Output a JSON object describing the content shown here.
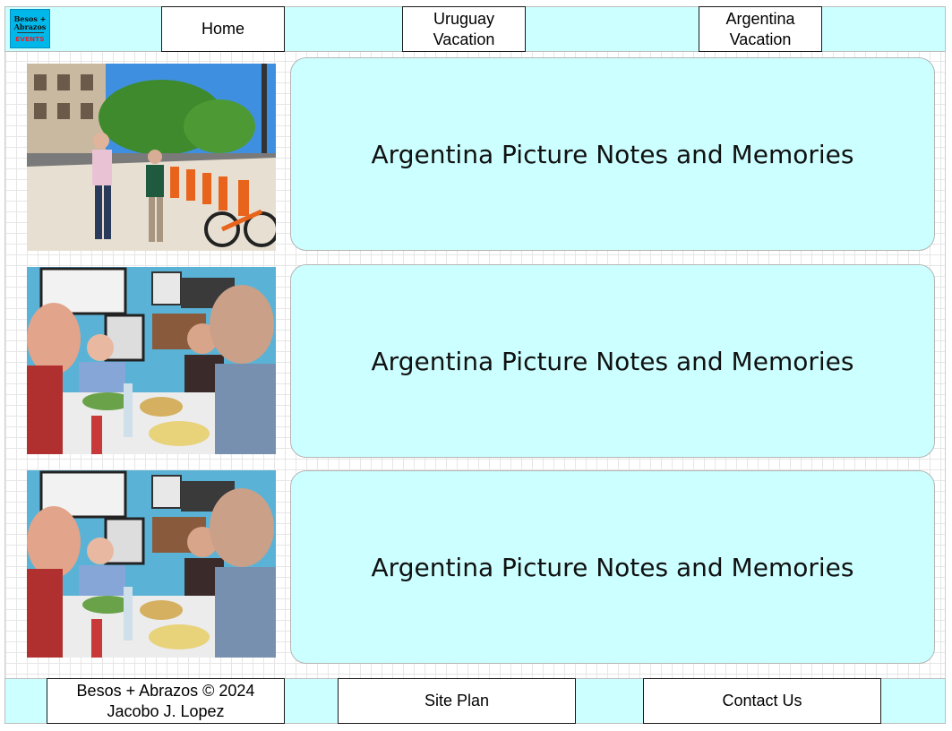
{
  "header": {
    "logo": {
      "line1": "Besos +",
      "line2": "Abrazos",
      "line3": "EVENTS"
    },
    "nav": [
      {
        "label": "Home"
      },
      {
        "label": "Uruguay\nVacation"
      },
      {
        "label": "Argentina\nVacation"
      }
    ]
  },
  "main": {
    "rows": [
      {
        "photo_subject": "street-scene-photo",
        "title": "Argentina Picture Notes and Memories"
      },
      {
        "photo_subject": "restaurant-selfie-photo",
        "title": "Argentina Picture Notes and Memories"
      },
      {
        "photo_subject": "restaurant-selfie-photo",
        "title": "Argentina Picture Notes and Memories"
      }
    ]
  },
  "footer": {
    "copyright": "Besos + Abrazos © 2024\nJacobo J. Lopez",
    "site_plan": "Site Plan",
    "contact": "Contact Us"
  },
  "colors": {
    "accent_cyan": "#ccffff",
    "border": "#1a1a1a"
  }
}
